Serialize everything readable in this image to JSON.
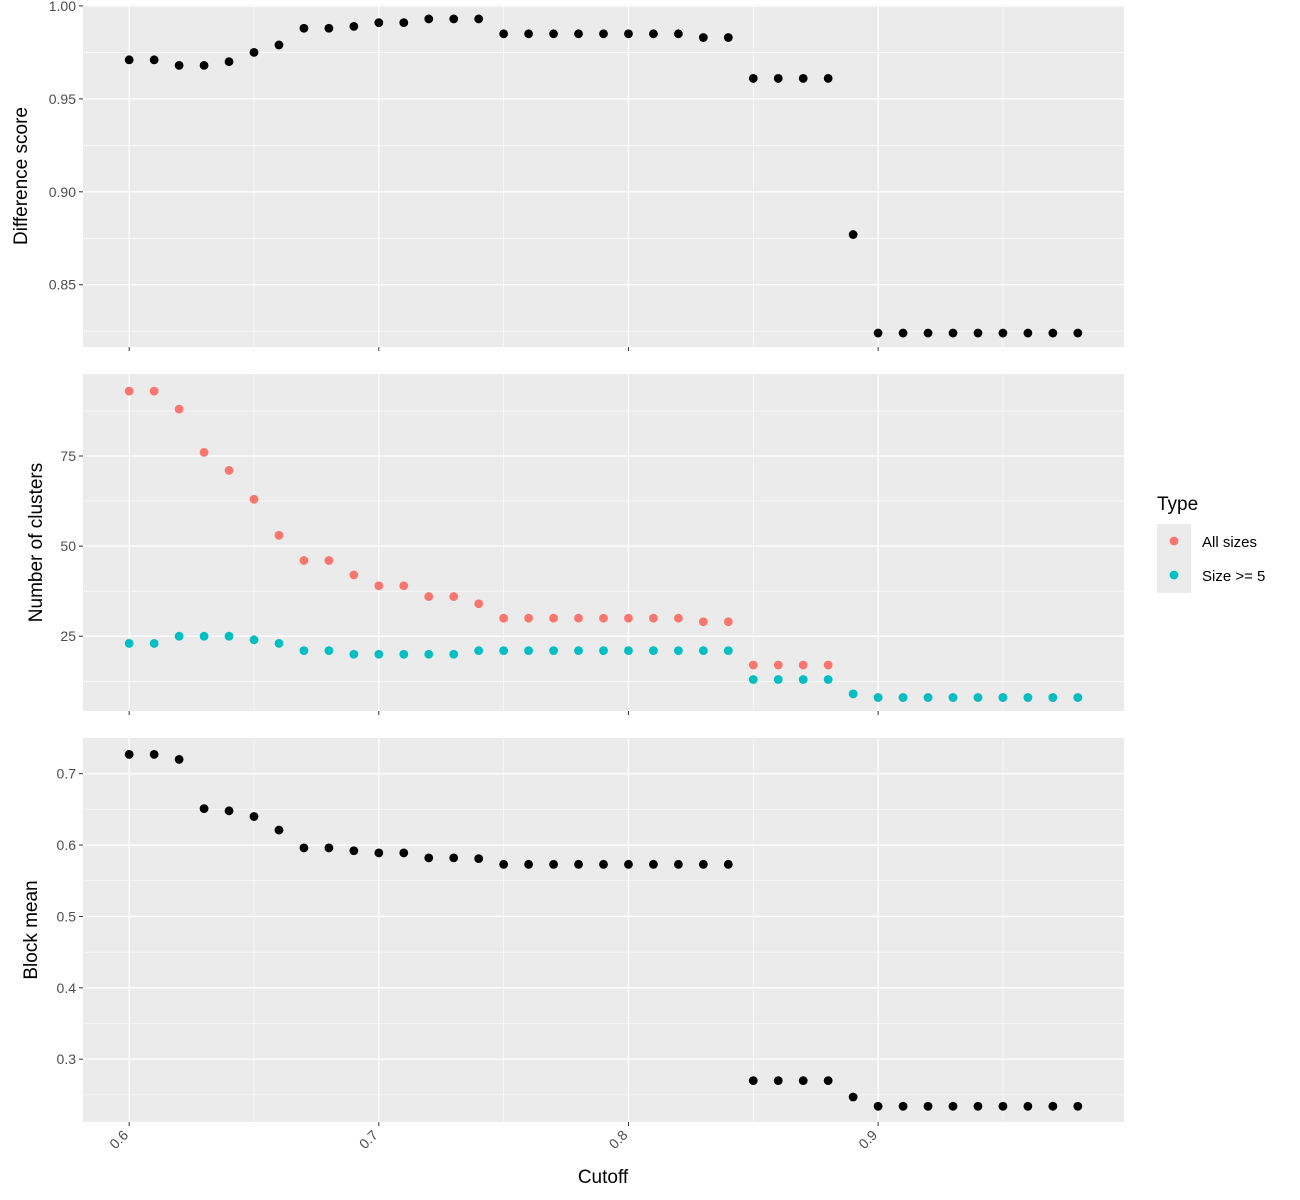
{
  "colors": {
    "panel_bg": "#EBEBEB",
    "grid_major": "#FFFFFF",
    "point_black": "#000000",
    "all_sizes": "#F8766D",
    "size_ge_5": "#00BFC4",
    "tick_text": "#4D4D4D",
    "tick_mark": "#333333"
  },
  "chart_data": {
    "type": "scatter",
    "xlabel": "Cutoff",
    "x_ticks": [
      0.6,
      0.7,
      0.8,
      0.9
    ],
    "x_tick_labels": [
      "0.6",
      "0.7",
      "0.8",
      "0.9"
    ],
    "x_range": [
      0.5815,
      0.9985
    ],
    "x": [
      0.6,
      0.61,
      0.62,
      0.63,
      0.64,
      0.65,
      0.66,
      0.67,
      0.68,
      0.69,
      0.7,
      0.71,
      0.72,
      0.73,
      0.74,
      0.75,
      0.76,
      0.77,
      0.78,
      0.79,
      0.8,
      0.81,
      0.82,
      0.83,
      0.84,
      0.85,
      0.86,
      0.87,
      0.88,
      0.89,
      0.9,
      0.91,
      0.92,
      0.93,
      0.94,
      0.95,
      0.96,
      0.97,
      0.98
    ],
    "grid": true,
    "panels": [
      {
        "name": "difference",
        "ylabel": "Difference score",
        "y_ticks": [
          0.85,
          0.9,
          0.95,
          1.0
        ],
        "y_tick_labels": [
          "0.85",
          "0.90",
          "0.95",
          "1.00"
        ],
        "ylim": [
          0.8165,
          1.0005
        ],
        "series": [
          {
            "color_key": "point_black",
            "values": [
              0.971,
              0.971,
              0.968,
              0.968,
              0.97,
              0.975,
              0.979,
              0.988,
              0.988,
              0.989,
              0.991,
              0.991,
              0.993,
              0.993,
              0.993,
              0.985,
              0.985,
              0.985,
              0.985,
              0.985,
              0.985,
              0.985,
              0.985,
              0.983,
              0.983,
              0.961,
              0.961,
              0.961,
              0.961,
              0.877,
              0.824,
              0.824,
              0.824,
              0.824,
              0.824,
              0.824,
              0.824,
              0.824,
              0.824
            ]
          }
        ]
      },
      {
        "name": "clusters",
        "ylabel": "Number of clusters",
        "y_ticks": [
          25,
          50,
          75
        ],
        "y_tick_labels": [
          "25",
          "50",
          "75"
        ],
        "ylim": [
          4.25,
          97.75
        ],
        "series": [
          {
            "name": "All sizes",
            "color_key": "all_sizes",
            "values": [
              93,
              93,
              88,
              76,
              71,
              63,
              53,
              46,
              46,
              42,
              39,
              39,
              36,
              36,
              34,
              30,
              30,
              30,
              30,
              30,
              30,
              30,
              30,
              29,
              29,
              17,
              17,
              17,
              17,
              9,
              8,
              8,
              8,
              8,
              8,
              8,
              8,
              8,
              8
            ]
          },
          {
            "name": "Size >= 5",
            "color_key": "size_ge_5",
            "values": [
              23,
              23,
              25,
              25,
              25,
              24,
              23,
              21,
              21,
              20,
              20,
              20,
              20,
              20,
              21,
              21,
              21,
              21,
              21,
              21,
              21,
              21,
              21,
              21,
              21,
              13,
              13,
              13,
              13,
              9,
              8,
              8,
              8,
              8,
              8,
              8,
              8,
              8,
              8
            ]
          }
        ]
      },
      {
        "name": "block",
        "ylabel": "Block mean",
        "y_ticks": [
          0.3,
          0.4,
          0.5,
          0.6,
          0.7
        ],
        "y_tick_labels": [
          "0.3",
          "0.4",
          "0.5",
          "0.6",
          "0.7"
        ],
        "ylim": [
          0.212,
          0.75
        ],
        "series": [
          {
            "color_key": "point_black",
            "values": [
              0.727,
              0.727,
              0.72,
              0.651,
              0.648,
              0.64,
              0.621,
              0.596,
              0.596,
              0.592,
              0.589,
              0.589,
              0.582,
              0.582,
              0.581,
              0.573,
              0.573,
              0.573,
              0.573,
              0.573,
              0.573,
              0.573,
              0.573,
              0.573,
              0.573,
              0.27,
              0.27,
              0.27,
              0.27,
              0.247,
              0.234,
              0.234,
              0.234,
              0.234,
              0.234,
              0.234,
              0.234,
              0.234,
              0.234
            ]
          }
        ]
      }
    ],
    "legend": {
      "title": "Type",
      "position": "right",
      "entries": [
        {
          "label": "All sizes",
          "color_key": "all_sizes"
        },
        {
          "label": "Size >= 5",
          "color_key": "size_ge_5"
        }
      ]
    }
  }
}
